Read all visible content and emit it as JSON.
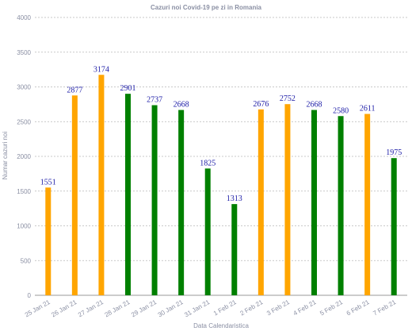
{
  "chart_data": {
    "type": "bar",
    "title": "Cazuri noi Covid-19 pe zi in Romania",
    "xlabel": "Data Calendaristica",
    "ylabel": "Numar cazuri noi",
    "ylim": [
      0,
      4000
    ],
    "yticks": [
      "0",
      "500",
      "1000",
      "1500",
      "2000",
      "2500",
      "3000",
      "3500",
      "4000"
    ],
    "grid": true,
    "categories": [
      "25 Jan 21",
      "26 Jan 21",
      "27 Jan 21",
      "28 Jan 21",
      "29 Jan 21",
      "30 Jan 21",
      "31 Jan 21",
      "1 Feb 21",
      "2 Feb 21",
      "3 Feb 21",
      "4 Feb 21",
      "5 Feb 21",
      "6 Feb 21",
      "7 Feb 21"
    ],
    "values": [
      1551,
      2877,
      3174,
      2901,
      2737,
      2668,
      1825,
      1313,
      2676,
      2752,
      2668,
      2580,
      2611,
      1975
    ],
    "bar_colors": [
      "#ffa500",
      "#ffa500",
      "#ffa500",
      "#008000",
      "#008000",
      "#008000",
      "#008000",
      "#008000",
      "#ffa500",
      "#ffa500",
      "#008000",
      "#008000",
      "#ffa500",
      "#008000"
    ],
    "data_labels": [
      "1551",
      "2877",
      "3174",
      "2901",
      "2737",
      "2668",
      "1825",
      "1313",
      "2676",
      "2752",
      "2668",
      "2580",
      "2611",
      "1975"
    ]
  }
}
